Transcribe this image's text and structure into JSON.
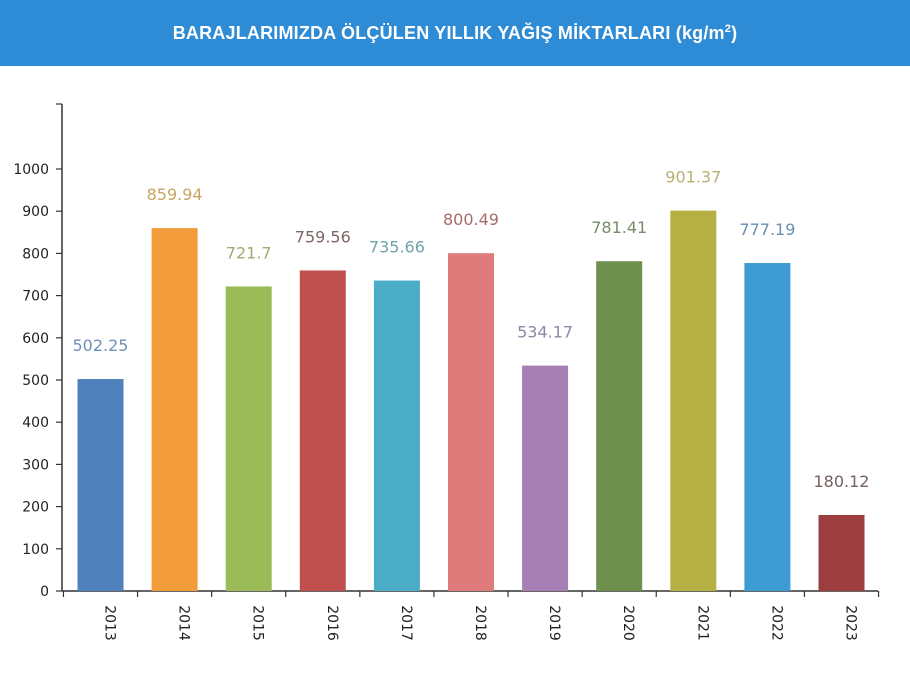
{
  "header": {
    "title_main": "BARAJLARIMIZDA ÖLÇÜLEN YILLIK YAĞIŞ MİKTARLARI (kg/m",
    "title_sup": "2",
    "title_end": ")",
    "background": "#2e8bd6"
  },
  "chart_data": {
    "type": "bar",
    "title": "BARAJLARIMIZDA ÖLÇÜLEN YILLIK YAĞIŞ MİKTARLARI (kg/m²)",
    "xlabel": "",
    "ylabel": "",
    "ylim": [
      0,
      1000
    ],
    "yticks": [
      "0",
      "100",
      "200",
      "300",
      "400",
      "500",
      "600",
      "700",
      "800",
      "900",
      "1000"
    ],
    "categories": [
      "2013",
      "2014",
      "2015",
      "2016",
      "2017",
      "2018",
      "2019",
      "2020",
      "2021",
      "2022",
      "2023"
    ],
    "values": [
      502.25,
      859.94,
      721.7,
      759.56,
      735.66,
      800.49,
      534.17,
      781.41,
      901.37,
      777.19,
      180.12
    ],
    "value_labels": [
      "502.25",
      "859.94",
      "721.7",
      "759.56",
      "735.66",
      "800.49",
      "534.17",
      "781.41",
      "901.37",
      "777.19",
      "180.12"
    ],
    "colors": [
      "#4f81bd",
      "#f39c3c",
      "#9bbb59",
      "#c0504d",
      "#4bacc6",
      "#e07b7b",
      "#a67fb5",
      "#6e8f4e",
      "#b5b043",
      "#3c9bd1",
      "#9c3d3f"
    ],
    "label_colors": [
      "#6f8fb8",
      "#c9a562",
      "#a4ab6a",
      "#7d6666",
      "#6fa3a8",
      "#a66d6d",
      "#8f86a6",
      "#778a66",
      "#b8b073",
      "#6a8fb3",
      "#776060"
    ],
    "grid": false
  }
}
